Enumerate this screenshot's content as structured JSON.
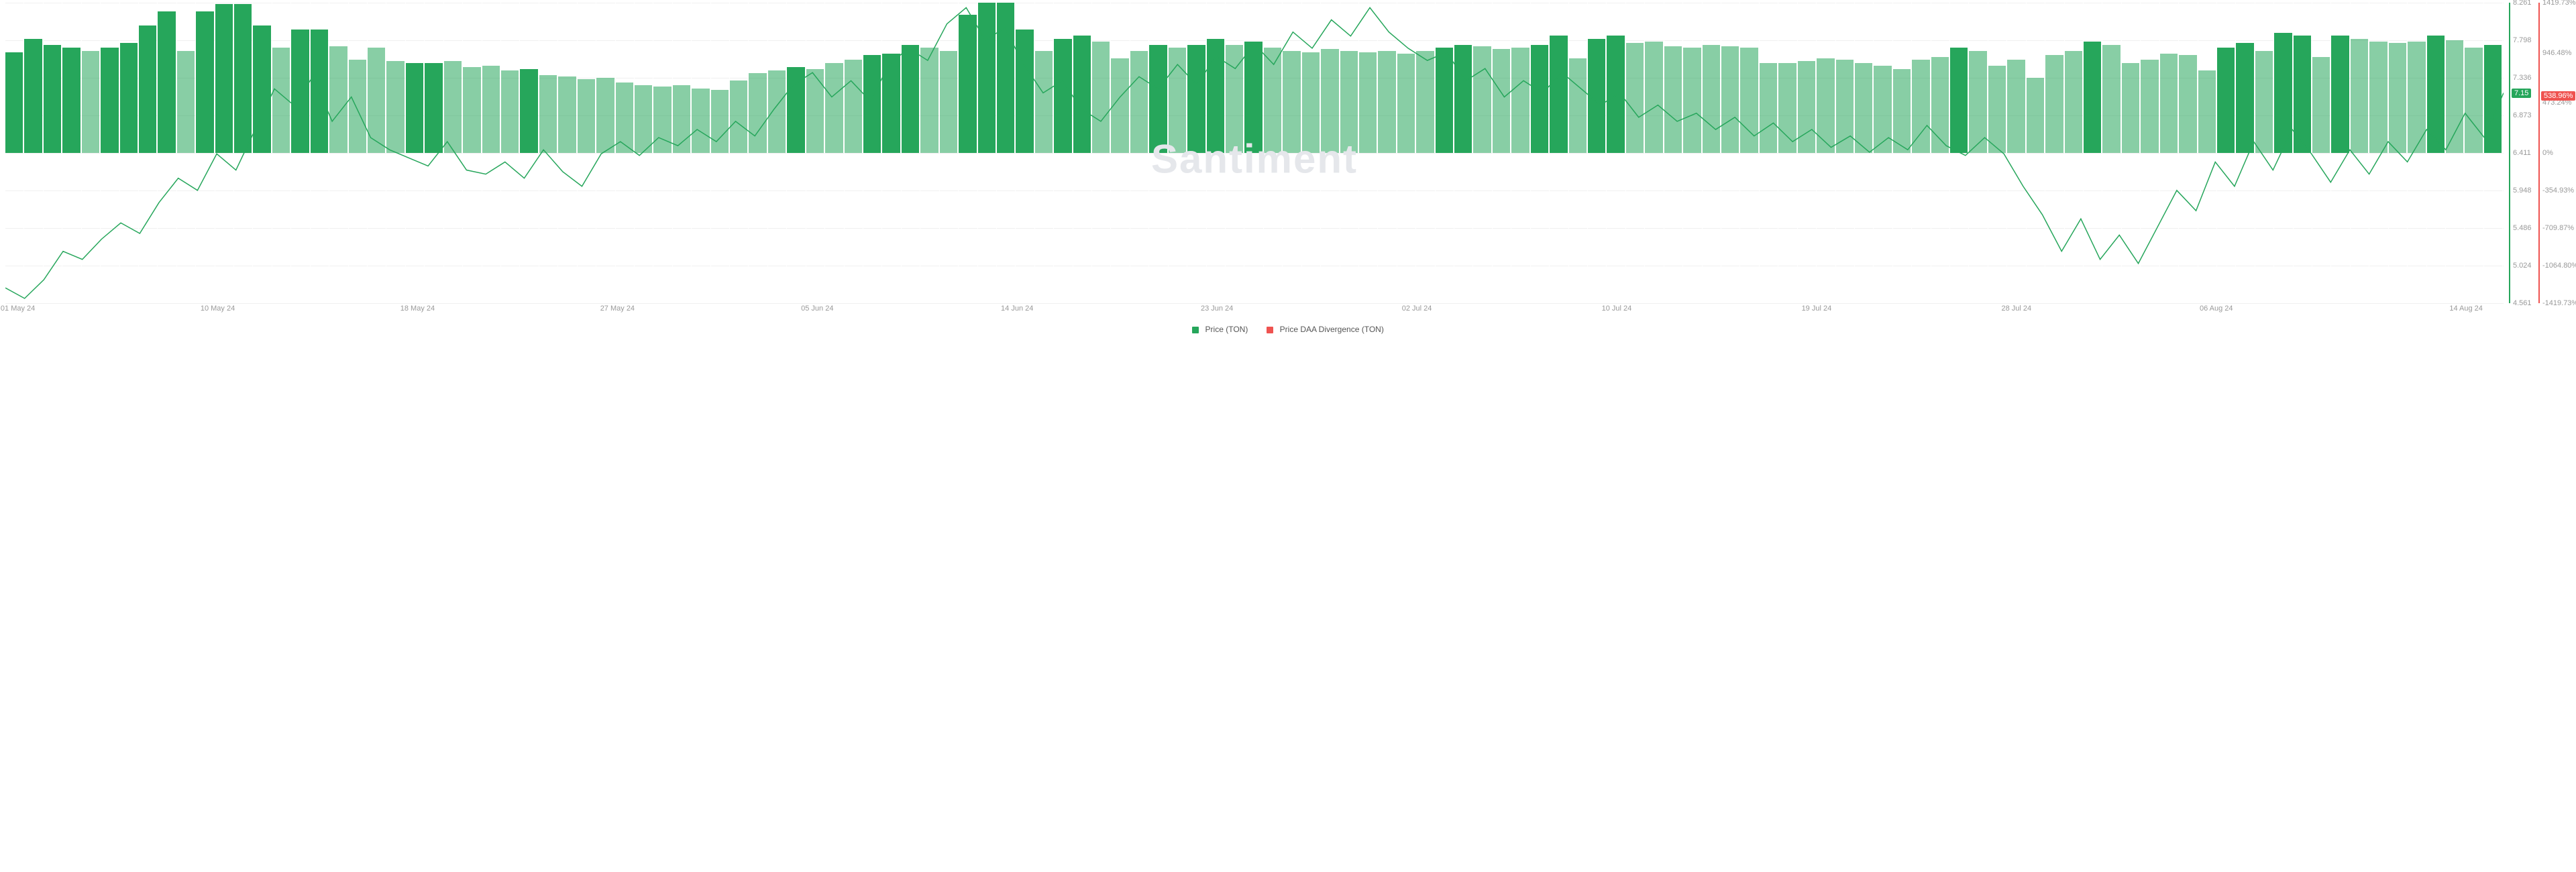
{
  "chart": {
    "type": "combo-bar-line",
    "background_color": "#ffffff",
    "grid_color": "#f0f0f0",
    "watermark": "Santiment",
    "watermark_color": "#e5e7eb",
    "left_axis": {
      "color": "#26a65b",
      "min": 4.561,
      "max": 8.261,
      "ticks": [
        8.261,
        7.798,
        7.336,
        6.873,
        6.411,
        5.948,
        5.486,
        5.024,
        4.561
      ],
      "current_value": 7.15,
      "current_label": "7.15",
      "label_fontsize": 11
    },
    "right_axis": {
      "color": "#ef5350",
      "min": -1419.73,
      "max": 1419.73,
      "ticks": [
        "1419.73%",
        "946.48%",
        "473.24%",
        "0%",
        "-354.93%",
        "-709.87%",
        "-1064.80%",
        "-1419.73%"
      ],
      "tick_positions_pct": [
        0,
        16.67,
        33.33,
        50,
        62.5,
        75,
        87.5,
        100
      ],
      "current_label": "538.96%",
      "current_position_pct": 31
    },
    "x_axis": {
      "labels": [
        "01 May 24",
        "10 May 24",
        "18 May 24",
        "27 May 24",
        "05 Jun 24",
        "14 Jun 24",
        "23 Jun 24",
        "02 Jul 24",
        "10 Jul 24",
        "19 Jul 24",
        "28 Jul 24",
        "06 Aug 24",
        "14 Aug 24"
      ],
      "positions_pct": [
        0.5,
        8.5,
        16.5,
        24.5,
        32.5,
        40.5,
        48.5,
        56.5,
        64.5,
        72.5,
        80.5,
        88.5,
        98.5
      ],
      "label_fontsize": 11,
      "label_color": "#999999"
    },
    "bars": {
      "color_bright": "#26a65b",
      "color_dark": "rgba(38,166,91,0.55)",
      "heights_pct": [
        67,
        76,
        72,
        70,
        68,
        70,
        73,
        85,
        94,
        68,
        94,
        99,
        99,
        85,
        70,
        82,
        82,
        71,
        62,
        70,
        61,
        60,
        60,
        61,
        57,
        58,
        55,
        56,
        52,
        51,
        49,
        50,
        47,
        45,
        44,
        45,
        43,
        42,
        48,
        53,
        55,
        57,
        56,
        60,
        62,
        65,
        66,
        72,
        70,
        68,
        92,
        100,
        100,
        82,
        68,
        76,
        78,
        74,
        63,
        68,
        72,
        70,
        72,
        76,
        72,
        74,
        70,
        68,
        67,
        69,
        68,
        67,
        68,
        66,
        68,
        70,
        72,
        71,
        69,
        70,
        72,
        78,
        63,
        76,
        78,
        73,
        74,
        71,
        70,
        72,
        71,
        70,
        60,
        60,
        61,
        63,
        62,
        60,
        58,
        56,
        62,
        64,
        70,
        68,
        58,
        62,
        50,
        65,
        68,
        74,
        72,
        60,
        62,
        66,
        65,
        55,
        70,
        73,
        68,
        80,
        78,
        64,
        78,
        76,
        74,
        73,
        74,
        78,
        75,
        70,
        72
      ],
      "shades": [
        1,
        1,
        1,
        1,
        0,
        1,
        1,
        1,
        1,
        0,
        1,
        1,
        1,
        1,
        0,
        1,
        1,
        0,
        0,
        0,
        0,
        1,
        1,
        0,
        0,
        0,
        0,
        1,
        0,
        0,
        0,
        0,
        0,
        0,
        0,
        0,
        0,
        0,
        0,
        0,
        0,
        1,
        0,
        0,
        0,
        1,
        1,
        1,
        0,
        0,
        1,
        1,
        1,
        1,
        0,
        1,
        1,
        0,
        0,
        0,
        1,
        0,
        1,
        1,
        0,
        1,
        0,
        0,
        0,
        0,
        0,
        0,
        0,
        0,
        0,
        1,
        1,
        0,
        0,
        0,
        1,
        1,
        0,
        1,
        1,
        0,
        0,
        0,
        0,
        0,
        0,
        0,
        0,
        0,
        0,
        0,
        0,
        0,
        0,
        0,
        0,
        0,
        1,
        0,
        0,
        0,
        0,
        0,
        0,
        1,
        0,
        0,
        0,
        0,
        0,
        0,
        1,
        1,
        0,
        1,
        1,
        0,
        1,
        0,
        0,
        0,
        0,
        1,
        0,
        0,
        1
      ]
    },
    "price_line": {
      "color": "#26a65b",
      "stroke_width": 1.5,
      "values": [
        4.75,
        4.62,
        4.85,
        5.2,
        5.1,
        5.35,
        5.55,
        5.42,
        5.8,
        6.1,
        5.95,
        6.4,
        6.2,
        6.7,
        7.2,
        7.0,
        7.35,
        6.8,
        7.1,
        6.6,
        6.45,
        6.35,
        6.25,
        6.55,
        6.2,
        6.15,
        6.3,
        6.1,
        6.45,
        6.18,
        6.0,
        6.4,
        6.55,
        6.38,
        6.6,
        6.5,
        6.7,
        6.55,
        6.8,
        6.62,
        6.95,
        7.25,
        7.4,
        7.1,
        7.3,
        7.05,
        7.5,
        7.7,
        7.55,
        8.0,
        8.2,
        7.8,
        7.95,
        7.5,
        7.15,
        7.3,
        6.95,
        6.8,
        7.1,
        7.35,
        7.2,
        7.5,
        7.25,
        7.6,
        7.45,
        7.75,
        7.5,
        7.9,
        7.7,
        8.05,
        7.85,
        8.2,
        7.9,
        7.7,
        7.55,
        7.65,
        7.3,
        7.45,
        7.1,
        7.3,
        7.15,
        7.4,
        7.2,
        7.0,
        7.15,
        6.85,
        7.0,
        6.8,
        6.9,
        6.7,
        6.85,
        6.62,
        6.78,
        6.55,
        6.7,
        6.48,
        6.62,
        6.42,
        6.6,
        6.45,
        6.75,
        6.5,
        6.38,
        6.6,
        6.4,
        6.0,
        5.65,
        5.2,
        5.6,
        5.1,
        5.4,
        5.05,
        5.5,
        5.95,
        5.7,
        6.3,
        6.0,
        6.55,
        6.2,
        6.7,
        6.4,
        6.05,
        6.45,
        6.15,
        6.55,
        6.3,
        6.7,
        6.45,
        6.9,
        6.6,
        7.15
      ]
    },
    "legend": [
      {
        "swatch_color": "#26a65b",
        "label": "Price (TON)"
      },
      {
        "swatch_color": "#ef5350",
        "label": "Price DAA Divergence (TON)"
      }
    ]
  }
}
